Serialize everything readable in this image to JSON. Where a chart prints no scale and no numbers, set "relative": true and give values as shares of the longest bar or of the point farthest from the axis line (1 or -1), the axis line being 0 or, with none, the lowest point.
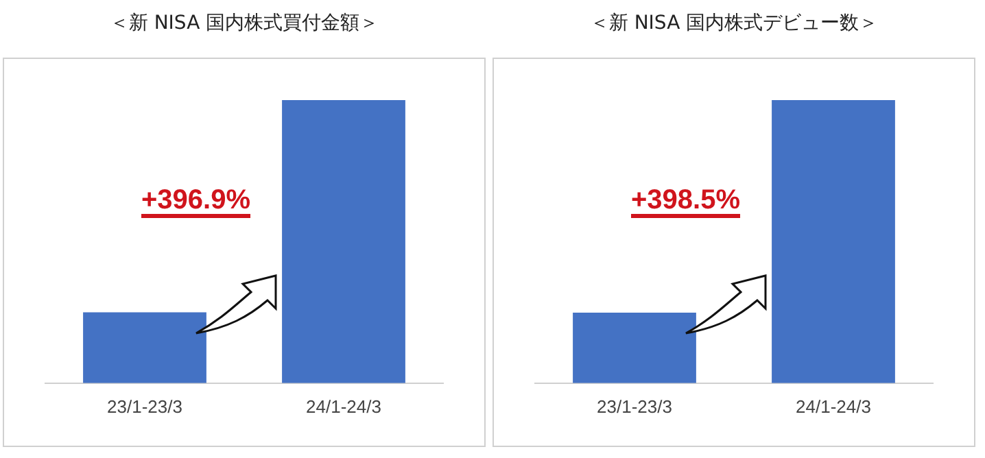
{
  "chart_data": [
    {
      "type": "bar",
      "title": "＜新 NISA 国内株式買付金額＞",
      "categories": [
        "23/1-23/3",
        "24/1-24/3"
      ],
      "values": [
        0.25,
        1
      ],
      "color": "#4472c4",
      "relative": true,
      "grid": false,
      "legend": false,
      "annotations": [
        "+396.9%"
      ]
    },
    {
      "type": "bar",
      "title": "＜新 NISA 国内株式デビュー数＞",
      "categories": [
        "23/1-23/3",
        "24/1-24/3"
      ],
      "values": [
        0.249,
        1
      ],
      "color": "#4472c4",
      "relative": true,
      "grid": false,
      "legend": false,
      "annotations": [
        "+398.5%"
      ]
    }
  ]
}
